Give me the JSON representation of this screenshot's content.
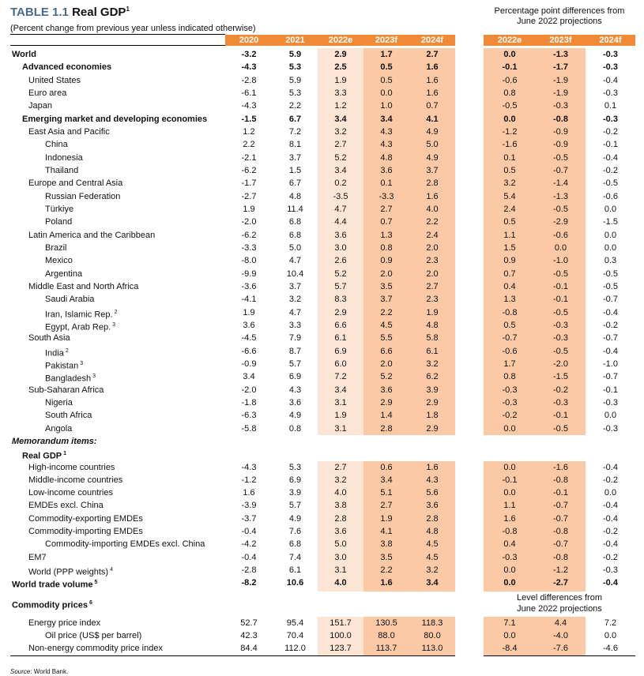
{
  "title": {
    "number": "TABLE 1.1",
    "text": "Real GDP",
    "sup": "1"
  },
  "subtitle": "(Percent change from previous year unless indicated otherwise)",
  "diff_header": {
    "line1": "Percentage point differences from",
    "line2": "June 2022 projections"
  },
  "columns": [
    "2020",
    "2021",
    "2022e",
    "2023f",
    "2024f"
  ],
  "diff_columns": [
    "2022e",
    "2023f",
    "2024f"
  ],
  "colors": {
    "header": "#f08a36",
    "shade_light": "#fde5d6",
    "shade_dark": "#fbc9a5",
    "title_number": "#4a6a8c"
  },
  "rows": [
    {
      "label": "World",
      "level": 0,
      "bold": true,
      "v": [
        "-3.2",
        "5.9",
        "2.9",
        "1.7",
        "2.7",
        "0.0",
        "-1.3",
        "-0.3"
      ]
    },
    {
      "label": "Advanced economies",
      "level": 1,
      "bold": true,
      "v": [
        "-4.3",
        "5.3",
        "2.5",
        "0.5",
        "1.6",
        "-0.1",
        "-1.7",
        "-0.3"
      ]
    },
    {
      "label": "United States",
      "level": 2,
      "v": [
        "-2.8",
        "5.9",
        "1.9",
        "0.5",
        "1.6",
        "-0.6",
        "-1.9",
        "-0.4"
      ]
    },
    {
      "label": "Euro area",
      "level": 2,
      "v": [
        "-6.1",
        "5.3",
        "3.3",
        "0.0",
        "1.6",
        "0.8",
        "-1.9",
        "-0.3"
      ]
    },
    {
      "label": "Japan",
      "level": 2,
      "v": [
        "-4.3",
        "2.2",
        "1.2",
        "1.0",
        "0.7",
        "-0.5",
        "-0.3",
        "0.1"
      ]
    },
    {
      "label": "Emerging market and developing economies",
      "level": 1,
      "bold": true,
      "v": [
        "-1.5",
        "6.7",
        "3.4",
        "3.4",
        "4.1",
        "0.0",
        "-0.8",
        "-0.3"
      ]
    },
    {
      "label": "East Asia and Pacific",
      "level": 2,
      "v": [
        "1.2",
        "7.2",
        "3.2",
        "4.3",
        "4.9",
        "-1.2",
        "-0.9",
        "-0.2"
      ]
    },
    {
      "label": "China",
      "level": 3,
      "v": [
        "2.2",
        "8.1",
        "2.7",
        "4.3",
        "5.0",
        "-1.6",
        "-0.9",
        "-0.1"
      ]
    },
    {
      "label": "Indonesia",
      "level": 3,
      "v": [
        "-2.1",
        "3.7",
        "5.2",
        "4.8",
        "4.9",
        "0.1",
        "-0.5",
        "-0.4"
      ]
    },
    {
      "label": "Thailand",
      "level": 3,
      "v": [
        "-6.2",
        "1.5",
        "3.4",
        "3.6",
        "3.7",
        "0.5",
        "-0.7",
        "-0.2"
      ]
    },
    {
      "label": "Europe and Central Asia",
      "level": 2,
      "v": [
        "-1.7",
        "6.7",
        "0.2",
        "0.1",
        "2.8",
        "3.2",
        "-1.4",
        "-0.5"
      ]
    },
    {
      "label": "Russian Federation",
      "level": 3,
      "v": [
        "-2.7",
        "4.8",
        "-3.5",
        "-3.3",
        "1.6",
        "5.4",
        "-1.3",
        "-0.6"
      ]
    },
    {
      "label": "Türkiye",
      "level": 3,
      "v": [
        "1.9",
        "11.4",
        "4.7",
        "2.7",
        "4.0",
        "2.4",
        "-0.5",
        "0.0"
      ]
    },
    {
      "label": "Poland",
      "level": 3,
      "v": [
        "-2.0",
        "6.8",
        "4.4",
        "0.7",
        "2.2",
        "0.5",
        "-2.9",
        "-1.5"
      ]
    },
    {
      "label": "Latin America and the Caribbean",
      "level": 2,
      "v": [
        "-6.2",
        "6.8",
        "3.6",
        "1.3",
        "2.4",
        "1.1",
        "-0.6",
        "0.0"
      ]
    },
    {
      "label": "Brazil",
      "level": 3,
      "v": [
        "-3.3",
        "5.0",
        "3.0",
        "0.8",
        "2.0",
        "1.5",
        "0.0",
        "0.0"
      ]
    },
    {
      "label": "Mexico",
      "level": 3,
      "v": [
        "-8.0",
        "4.7",
        "2.6",
        "0.9",
        "2.3",
        "0.9",
        "-1.0",
        "0.3"
      ]
    },
    {
      "label": "Argentina",
      "level": 3,
      "v": [
        "-9.9",
        "10.4",
        "5.2",
        "2.0",
        "2.0",
        "0.7",
        "-0.5",
        "-0.5"
      ]
    },
    {
      "label": "Middle East and North Africa",
      "level": 2,
      "v": [
        "-3.6",
        "3.7",
        "5.7",
        "3.5",
        "2.7",
        "0.4",
        "-0.1",
        "-0.5"
      ]
    },
    {
      "label": "Saudi Arabia",
      "level": 3,
      "v": [
        "-4.1",
        "3.2",
        "8.3",
        "3.7",
        "2.3",
        "1.3",
        "-0.1",
        "-0.7"
      ]
    },
    {
      "label": "Iran, Islamic Rep.",
      "sup": "2",
      "level": 3,
      "v": [
        "1.9",
        "4.7",
        "2.9",
        "2.2",
        "1.9",
        "-0.8",
        "-0.5",
        "-0.4"
      ]
    },
    {
      "label": "Egypt, Arab Rep.",
      "sup": "3",
      "level": 3,
      "v": [
        "3.6",
        "3.3",
        "6.6",
        "4.5",
        "4.8",
        "0.5",
        "-0.3",
        "-0.2"
      ]
    },
    {
      "label": "South Asia",
      "level": 2,
      "v": [
        "-4.5",
        "7.9",
        "6.1",
        "5.5",
        "5.8",
        "-0.7",
        "-0.3",
        "-0.7"
      ]
    },
    {
      "label": "India",
      "sup": "2",
      "level": 3,
      "v": [
        "-6.6",
        "8.7",
        "6.9",
        "6.6",
        "6.1",
        "-0.6",
        "-0.5",
        "-0.4"
      ]
    },
    {
      "label": "Pakistan",
      "sup": "3",
      "level": 3,
      "v": [
        "-0.9",
        "5.7",
        "6.0",
        "2.0",
        "3.2",
        "1.7",
        "-2.0",
        "-1.0"
      ]
    },
    {
      "label": "Bangladesh",
      "sup": "3",
      "level": 3,
      "v": [
        "3.4",
        "6.9",
        "7.2",
        "5.2",
        "6.2",
        "0.8",
        "-1.5",
        "-0.7"
      ]
    },
    {
      "label": "Sub-Saharan Africa",
      "level": 2,
      "v": [
        "-2.0",
        "4.3",
        "3.4",
        "3.6",
        "3.9",
        "-0.3",
        "-0.2",
        "-0.1"
      ]
    },
    {
      "label": "Nigeria",
      "level": 3,
      "v": [
        "-1.8",
        "3.6",
        "3.1",
        "2.9",
        "2.9",
        "-0.3",
        "-0.3",
        "-0.3"
      ]
    },
    {
      "label": "South Africa",
      "level": 3,
      "v": [
        "-6.3",
        "4.9",
        "1.9",
        "1.4",
        "1.8",
        "-0.2",
        "-0.1",
        "0.0"
      ]
    },
    {
      "label": "Angola",
      "level": 3,
      "v": [
        "-5.8",
        "0.8",
        "3.1",
        "2.8",
        "2.9",
        "0.0",
        "-0.5",
        "-0.3"
      ]
    },
    {
      "label": "Memorandum items:",
      "level": 0,
      "bold": true,
      "italic": true
    },
    {
      "label": "Real GDP",
      "sup": "1",
      "level": 1,
      "bold": true
    },
    {
      "label": "High-income countries",
      "level": 2,
      "v": [
        "-4.3",
        "5.3",
        "2.7",
        "0.6",
        "1.6",
        "0.0",
        "-1.6",
        "-0.4"
      ]
    },
    {
      "label": "Middle-income countries",
      "level": 2,
      "v": [
        "-1.2",
        "6.9",
        "3.2",
        "3.4",
        "4.3",
        "-0.1",
        "-0.8",
        "-0.2"
      ]
    },
    {
      "label": "Low-income countries",
      "level": 2,
      "v": [
        "1.6",
        "3.9",
        "4.0",
        "5.1",
        "5.6",
        "0.0",
        "-0.1",
        "0.0"
      ]
    },
    {
      "label": "EMDEs excl. China",
      "level": 2,
      "v": [
        "-3.9",
        "5.7",
        "3.8",
        "2.7",
        "3.6",
        "1.1",
        "-0.7",
        "-0.4"
      ]
    },
    {
      "label": "Commodity-exporting EMDEs",
      "level": 2,
      "v": [
        "-3.7",
        "4.9",
        "2.8",
        "1.9",
        "2.8",
        "1.6",
        "-0.7",
        "-0.4"
      ]
    },
    {
      "label": "Commodity-importing EMDEs",
      "level": 2,
      "v": [
        "-0.4",
        "7.6",
        "3.6",
        "4.1",
        "4.8",
        "-0.8",
        "-0.8",
        "-0.2"
      ]
    },
    {
      "label": "Commodity-importing EMDEs excl. China",
      "level": 3,
      "v": [
        "-4.2",
        "6.8",
        "5.0",
        "3.8",
        "4.5",
        "0.4",
        "-0.7",
        "-0.4"
      ]
    },
    {
      "label": "EM7",
      "level": 2,
      "v": [
        "-0.4",
        "7.4",
        "3.0",
        "3.5",
        "4.5",
        "-0.3",
        "-0.8",
        "-0.2"
      ]
    },
    {
      "label": "World (PPP weights)",
      "sup": "4",
      "level": 2,
      "v": [
        "-2.8",
        "6.1",
        "3.1",
        "2.2",
        "3.2",
        "0.0",
        "-1.2",
        "-0.3"
      ]
    },
    {
      "label": "World trade volume",
      "sup": "5",
      "level": 0,
      "bold": true,
      "v": [
        "-8.2",
        "10.6",
        "4.0",
        "1.6",
        "3.4",
        "0.0",
        "-2.7",
        "-0.4"
      ]
    },
    {
      "label": "Commodity prices",
      "sup": "6",
      "level": 0,
      "bold": true,
      "commhdr": true,
      "diff_line1": "Level differences from",
      "diff_line2": "June 2022 projections"
    },
    {
      "label": "Energy price index",
      "level": 2,
      "v": [
        "52.7",
        "95.4",
        "151.7",
        "130.5",
        "118.3",
        "7.1",
        "4.4",
        "7.2"
      ]
    },
    {
      "label": "Oil price (US$ per barrel)",
      "level": 3,
      "v": [
        "42.3",
        "70.4",
        "100.0",
        "88.0",
        "80.0",
        "0.0",
        "-4.0",
        "0.0"
      ]
    },
    {
      "label": "Non-energy commodity price index",
      "level": 2,
      "v": [
        "84.4",
        "112.0",
        "123.7",
        "113.7",
        "113.0",
        "-8.4",
        "-7.6",
        "-4.6"
      ]
    }
  ],
  "source": {
    "label": "Source",
    "text": ": World Bank."
  }
}
